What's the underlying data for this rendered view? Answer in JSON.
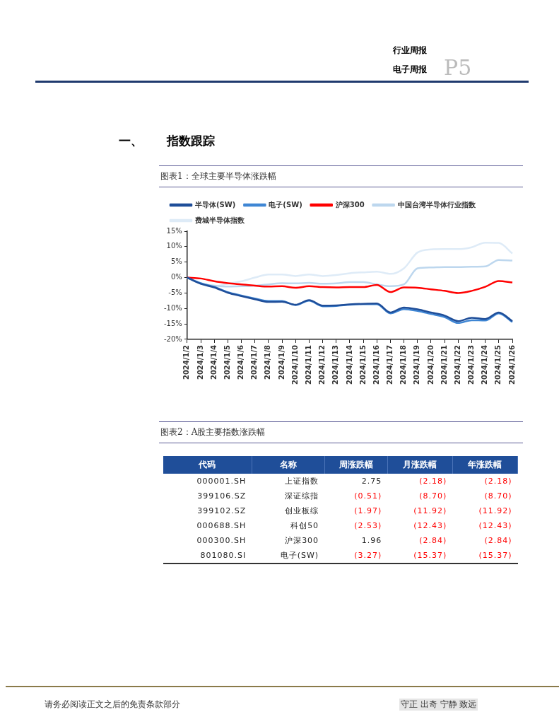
{
  "chart_data": [
    {
      "type": "line",
      "title": "图表1：全球主要半导体涨跌幅",
      "annotations": [
        "行业周报",
        "电子周报",
        "P5",
        "一、　　指数跟踪",
        "请务必阅读正文之后的免责条款部分",
        "守正 出奇 宁静 致远"
      ],
      "categories": [
        "2024/1/2",
        "2024/1/3",
        "2024/1/4",
        "2024/1/5",
        "2024/1/6",
        "2024/1/7",
        "2024/1/8",
        "2024/1/9",
        "2024/1/10",
        "2024/1/11",
        "2024/1/12",
        "2024/1/13",
        "2024/1/14",
        "2024/1/15",
        "2024/1/16",
        "2024/1/17",
        "2024/1/18",
        "2024/1/19",
        "2024/1/20",
        "2024/1/21",
        "2024/1/22",
        "2024/1/23",
        "2024/1/24",
        "2024/1/25",
        "2024/1/26"
      ],
      "series": [
        {
          "name": "半导体(SW)",
          "color": "#1f4e99",
          "values": [
            0,
            -2.0,
            -3.2,
            -4.9,
            -6.0,
            -7.0,
            -7.9,
            -7.8,
            -8.8,
            -7.3,
            -9.1,
            -9.0,
            -8.7,
            -8.5,
            -8.4,
            -11.3,
            -9.7,
            -10.3,
            -11.3,
            -12.3,
            -14.1,
            -13.0,
            -13.4,
            -11.3,
            -14.1
          ]
        },
        {
          "name": "电子(SW)",
          "color": "#3f86d4",
          "values": [
            0,
            -1.8,
            -3.0,
            -4.7,
            -5.8,
            -6.8,
            -7.6,
            -7.6,
            -8.9,
            -7.5,
            -9.3,
            -9.2,
            -8.8,
            -8.6,
            -8.6,
            -11.6,
            -10.2,
            -10.8,
            -11.8,
            -12.8,
            -14.7,
            -13.8,
            -13.9,
            -11.6,
            -14.4
          ]
        },
        {
          "name": "沪深300",
          "color": "#ff0000",
          "values": [
            0,
            -0.3,
            -1.2,
            -1.8,
            -2.2,
            -2.6,
            -2.9,
            -2.8,
            -3.3,
            -2.8,
            -3.1,
            -3.2,
            -3.1,
            -3.1,
            -2.4,
            -4.7,
            -3.2,
            -3.3,
            -3.8,
            -4.3,
            -5.0,
            -4.3,
            -3.0,
            -1.1,
            -1.6
          ]
        },
        {
          "name": "中国台湾半导体行业指数",
          "color": "#bdd7ee",
          "values": [
            0,
            -2.0,
            -2.6,
            -2.9,
            -2.8,
            -2.6,
            -2.2,
            -1.8,
            -1.9,
            -1.7,
            -2.0,
            -1.9,
            -1.5,
            -1.5,
            -2.2,
            -2.8,
            -2.2,
            3.0,
            3.3,
            3.4,
            3.4,
            3.5,
            3.6,
            5.7,
            5.5
          ]
        },
        {
          "name": "费城半导体指数",
          "color": "#deebf7",
          "values": [
            0,
            -1.8,
            -2.8,
            -2.0,
            -1.2,
            0,
            1.0,
            1.0,
            0.5,
            1.0,
            0.5,
            0.8,
            1.4,
            1.7,
            1.9,
            1.2,
            3.0,
            8.1,
            9.1,
            9.2,
            9.2,
            9.8,
            11.3,
            11.2,
            7.8
          ]
        }
      ],
      "ylim": [
        -20,
        15
      ],
      "yticks": [
        {
          "value": -20,
          "label": "-20%"
        },
        {
          "value": -15,
          "label": "-15%"
        },
        {
          "value": -10,
          "label": "-10%"
        },
        {
          "value": -5,
          "label": "-5%"
        },
        {
          "value": 0,
          "label": "0%"
        },
        {
          "value": 5,
          "label": "5%"
        },
        {
          "value": 10,
          "label": "10%"
        },
        {
          "value": 15,
          "label": "15%"
        }
      ],
      "legend": "top",
      "grid": false,
      "marker": "none",
      "line_style": "solid"
    },
    {
      "type": "other",
      "title": "图表2：A股主要指数涨跌幅",
      "categories": [
        "代码",
        "名称",
        "周涨跌幅",
        "月涨跌幅",
        "年涨跌幅"
      ],
      "cell_labels": [
        [
          "000001.SH",
          "上证指数",
          "2.75",
          "(2.18)",
          "(2.18)"
        ],
        [
          "399106.SZ",
          "深证综指",
          "(0.51)",
          "(8.70)",
          "(8.70)"
        ],
        [
          "399102.SZ",
          "创业板综",
          "(1.97)",
          "(11.92)",
          "(11.92)"
        ],
        [
          "000688.SH",
          "科创50",
          "(2.53)",
          "(12.43)",
          "(12.43)"
        ],
        [
          "000300.SH",
          "沪深300",
          "1.96",
          "(2.84)",
          "(2.84)"
        ],
        [
          "801080.SI",
          "电子(SW)",
          "(3.27)",
          "(15.37)",
          "(15.37)"
        ]
      ],
      "colors": [
        [
          "#222222",
          "#222222",
          "#222222",
          "#ff0000",
          "#ff0000"
        ],
        [
          "#222222",
          "#222222",
          "#ff0000",
          "#ff0000",
          "#ff0000"
        ],
        [
          "#222222",
          "#222222",
          "#ff0000",
          "#ff0000",
          "#ff0000"
        ],
        [
          "#222222",
          "#222222",
          "#ff0000",
          "#ff0000",
          "#ff0000"
        ],
        [
          "#222222",
          "#222222",
          "#222222",
          "#ff0000",
          "#ff0000"
        ],
        [
          "#222222",
          "#222222",
          "#ff0000",
          "#ff0000",
          "#ff0000"
        ]
      ]
    }
  ]
}
